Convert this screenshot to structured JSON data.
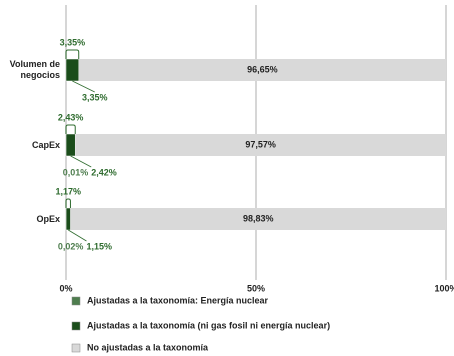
{
  "chart_data": {
    "type": "stacked-bar-horizontal",
    "categories": [
      "Volumen de negocios",
      "CapEx",
      "OpEx"
    ],
    "series": [
      {
        "name": "Ajustadas a la taxonomía: Energía nuclear",
        "color": "#4e7d4e",
        "values": [
          0,
          0.01,
          0.02
        ],
        "value_labels": [
          null,
          "0,01%",
          "0,02%"
        ]
      },
      {
        "name": "Ajustadas a la taxonomía (ni gas fosil ni energía nuclear)",
        "color": "#1b4d1b",
        "values": [
          3.35,
          2.42,
          1.15
        ],
        "value_labels": [
          "3,35%",
          "2,42%",
          "1,15%"
        ]
      },
      {
        "name": "No ajustadas a la taxonomía",
        "color": "#d9d9d9",
        "values": [
          96.65,
          97.57,
          98.83
        ],
        "value_labels": [
          "96,65%",
          "97,57%",
          "98,83%"
        ]
      }
    ],
    "aligned_totals": {
      "values": [
        3.35,
        2.43,
        1.17
      ],
      "value_labels": [
        "3,35%",
        "2,43%",
        "1,17%"
      ]
    },
    "xlim": [
      0,
      100
    ],
    "xticks": [
      {
        "value": 0,
        "label": "0%"
      },
      {
        "value": 50,
        "label": "50%"
      },
      {
        "value": 100,
        "label": "100%"
      }
    ],
    "grid": true
  }
}
